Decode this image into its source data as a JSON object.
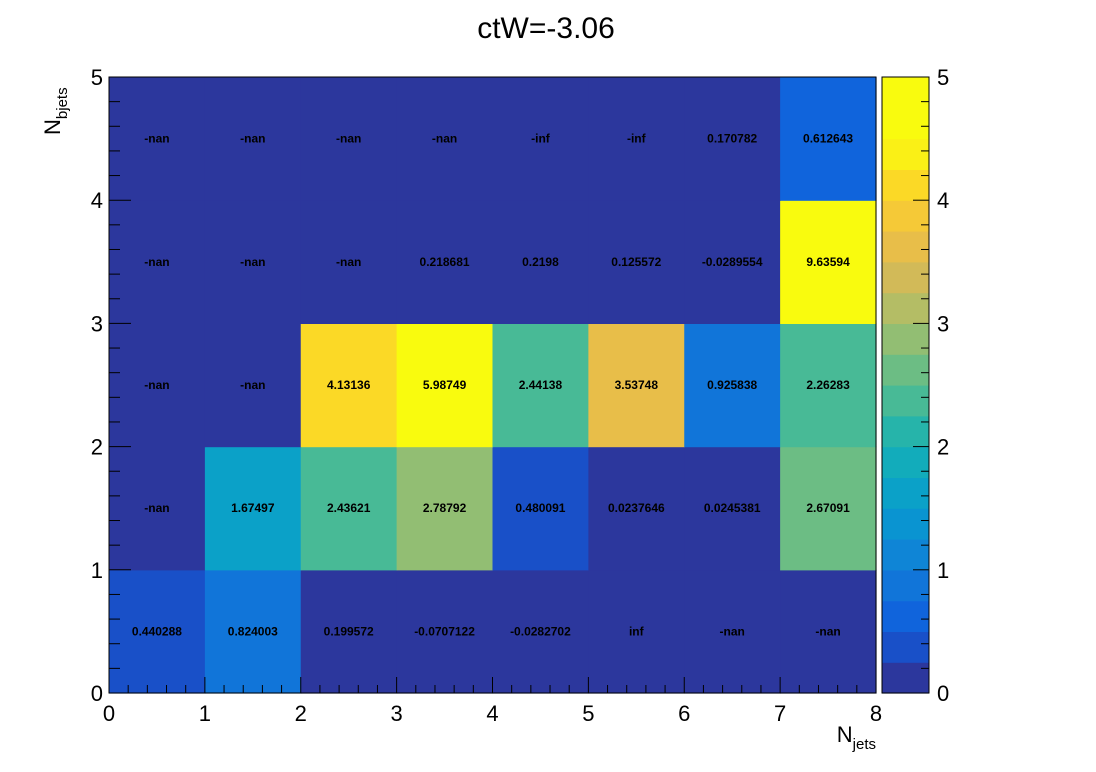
{
  "chart_data": {
    "type": "heatmap",
    "title": "ctW=-3.06",
    "xlabel": {
      "main": "N",
      "sub": "jets"
    },
    "ylabel": {
      "main": "N",
      "sub": "bjets"
    },
    "xlim": [
      0,
      8
    ],
    "ylim": [
      0,
      5
    ],
    "x_ticks": [
      "0",
      "1",
      "2",
      "3",
      "4",
      "5",
      "6",
      "7",
      "8"
    ],
    "y_ticks": [
      "0",
      "1",
      "2",
      "3",
      "4",
      "5"
    ],
    "color_scale": {
      "min": 0,
      "max": 5,
      "ticks": [
        "0",
        "1",
        "2",
        "3",
        "4",
        "5"
      ]
    },
    "rows": [
      {
        "ybin": 0,
        "labels": [
          "0.440288",
          "0.824003",
          "0.199572",
          "-0.0707122",
          "-0.0282702",
          "inf",
          "-nan",
          "-nan"
        ],
        "values": [
          0.440288,
          0.824003,
          0.199572,
          -0.0707122,
          -0.0282702,
          null,
          null,
          null
        ]
      },
      {
        "ybin": 1,
        "labels": [
          "-nan",
          "1.67497",
          "2.43621",
          "2.78792",
          "0.480091",
          "0.0237646",
          "0.0245381",
          "2.67091"
        ],
        "values": [
          null,
          1.67497,
          2.43621,
          2.78792,
          0.480091,
          0.0237646,
          0.0245381,
          2.67091
        ]
      },
      {
        "ybin": 2,
        "labels": [
          "-nan",
          "-nan",
          "4.13136",
          "5.98749",
          "2.44138",
          "3.53748",
          "0.925838",
          "2.26283"
        ],
        "values": [
          null,
          null,
          4.13136,
          5.98749,
          2.44138,
          3.53748,
          0.925838,
          2.26283
        ]
      },
      {
        "ybin": 3,
        "labels": [
          "-nan",
          "-nan",
          "-nan",
          "0.218681",
          "0.2198",
          "0.125572",
          "-0.0289554",
          "9.63594"
        ],
        "values": [
          null,
          null,
          null,
          0.218681,
          0.2198,
          0.125572,
          -0.0289554,
          9.63594
        ]
      },
      {
        "ybin": 4,
        "labels": [
          "-nan",
          "-nan",
          "-nan",
          "-nan",
          "-inf",
          "-inf",
          "0.170782",
          "0.612643"
        ],
        "values": [
          null,
          null,
          null,
          null,
          null,
          null,
          0.170782,
          0.612643
        ]
      }
    ]
  }
}
